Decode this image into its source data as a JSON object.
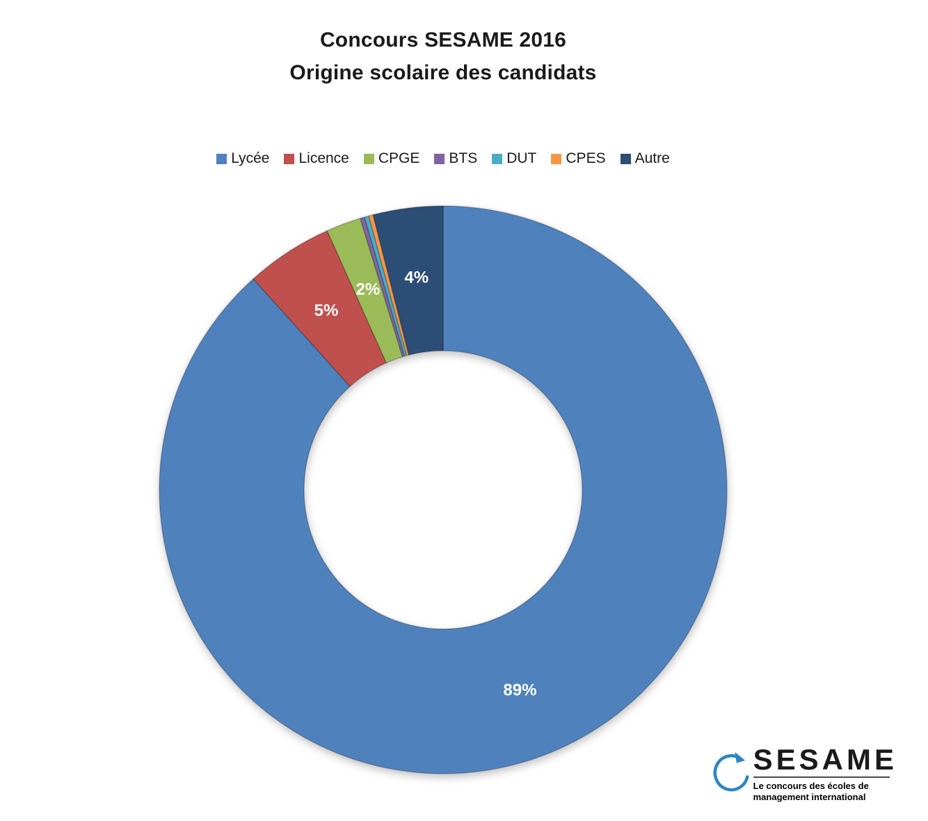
{
  "title": {
    "line1": "Concours SESAME 2016",
    "line2": "Origine scolaire des candidats"
  },
  "chart_data": {
    "type": "pie",
    "subtype": "donut",
    "title": "Concours SESAME 2016 - Origine scolaire des candidats",
    "legend_position": "top",
    "donut_hole_ratio": 0.49,
    "start_angle_deg": 0,
    "direction": "clockwise",
    "label_color": "#ffffff",
    "series": [
      {
        "name": "Lycée",
        "value": 89,
        "label": "89%",
        "color": "#4F81BD"
      },
      {
        "name": "Licence",
        "value": 5,
        "label": "5%",
        "color": "#C0504D"
      },
      {
        "name": "CPGE",
        "value": 2,
        "label": "2%",
        "color": "#9BBB59"
      },
      {
        "name": "BTS",
        "value": 0.25,
        "label": "",
        "color": "#8064A2"
      },
      {
        "name": "DUT",
        "value": 0.25,
        "label": "",
        "color": "#4BACC6"
      },
      {
        "name": "CPES",
        "value": 0.25,
        "label": "",
        "color": "#F79646"
      },
      {
        "name": "Autre",
        "value": 4,
        "label": "4%",
        "color": "#2C4D75"
      }
    ]
  },
  "logo": {
    "brand": "SESAME",
    "tagline_line1": "Le concours des écoles de",
    "tagline_line2": "management international",
    "accent_color": "#2E86C1",
    "brand_color": "#1a1a1a"
  }
}
